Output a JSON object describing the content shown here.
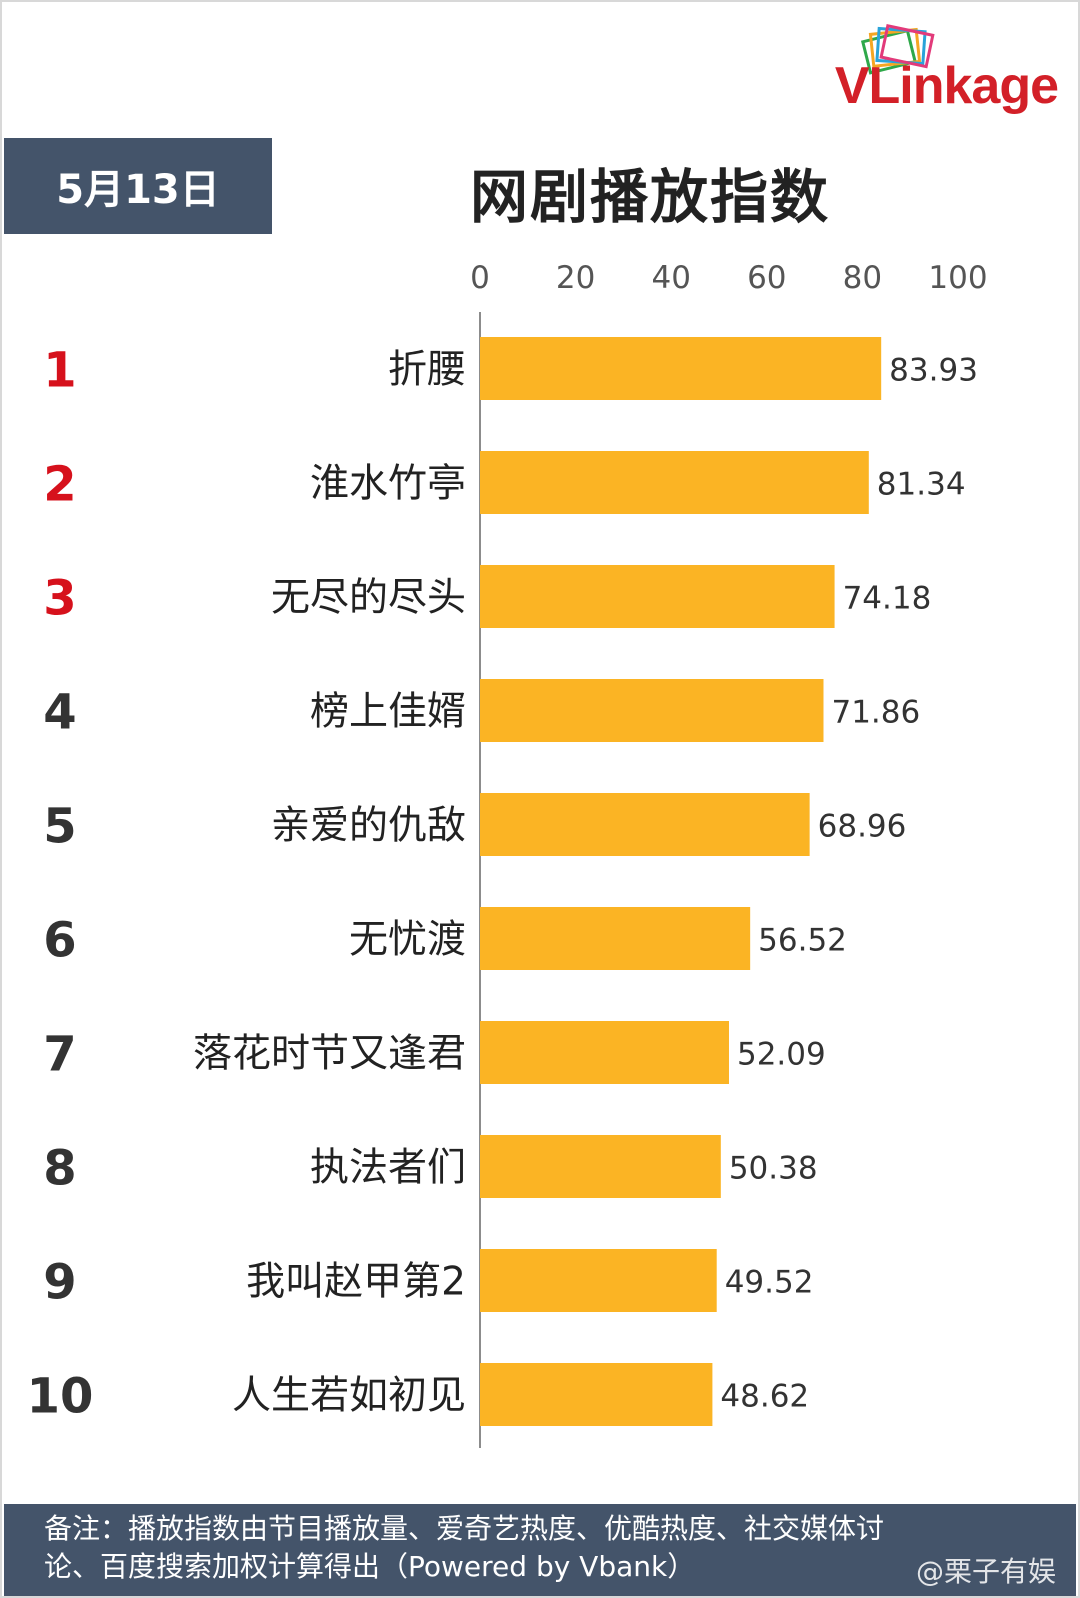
{
  "logo": {
    "text_v": "VL",
    "text_rest": "inkage"
  },
  "date_label": "5月13日",
  "colors": {
    "bar": "#fbb424",
    "date_bg": "#44546a",
    "rank_top": "#d6111c",
    "rank_other": "#333333",
    "footer_bg": "#44546a"
  },
  "chart_data": {
    "type": "bar",
    "orientation": "horizontal",
    "title": "网剧播放指数",
    "xlim": [
      0,
      100
    ],
    "ticks": [
      0,
      20,
      40,
      60,
      80,
      100
    ],
    "ranks": [
      "1",
      "2",
      "3",
      "4",
      "5",
      "6",
      "7",
      "8",
      "9",
      "10"
    ],
    "categories": [
      "折腰",
      "淮水竹亭",
      "无尽的尽头",
      "榜上佳婿",
      "亲爱的仇敌",
      "无忧渡",
      "落花时节又逢君",
      "执法者们",
      "我叫赵甲第2",
      "人生若如初见"
    ],
    "values": [
      83.93,
      81.34,
      74.18,
      71.86,
      68.96,
      56.52,
      52.09,
      50.38,
      49.52,
      48.62
    ],
    "value_labels": [
      "83.93",
      "81.34",
      "74.18",
      "71.86",
      "68.96",
      "56.52",
      "52.09",
      "50.38",
      "49.52",
      "48.62"
    ]
  },
  "footer": {
    "line1": "备注：播放指数由节目播放量、爱奇艺热度、优酷热度、社交媒体讨",
    "line2": "论、百度搜索加权计算得出（Powered by Vbank）"
  },
  "watermark": "@栗子有娱"
}
